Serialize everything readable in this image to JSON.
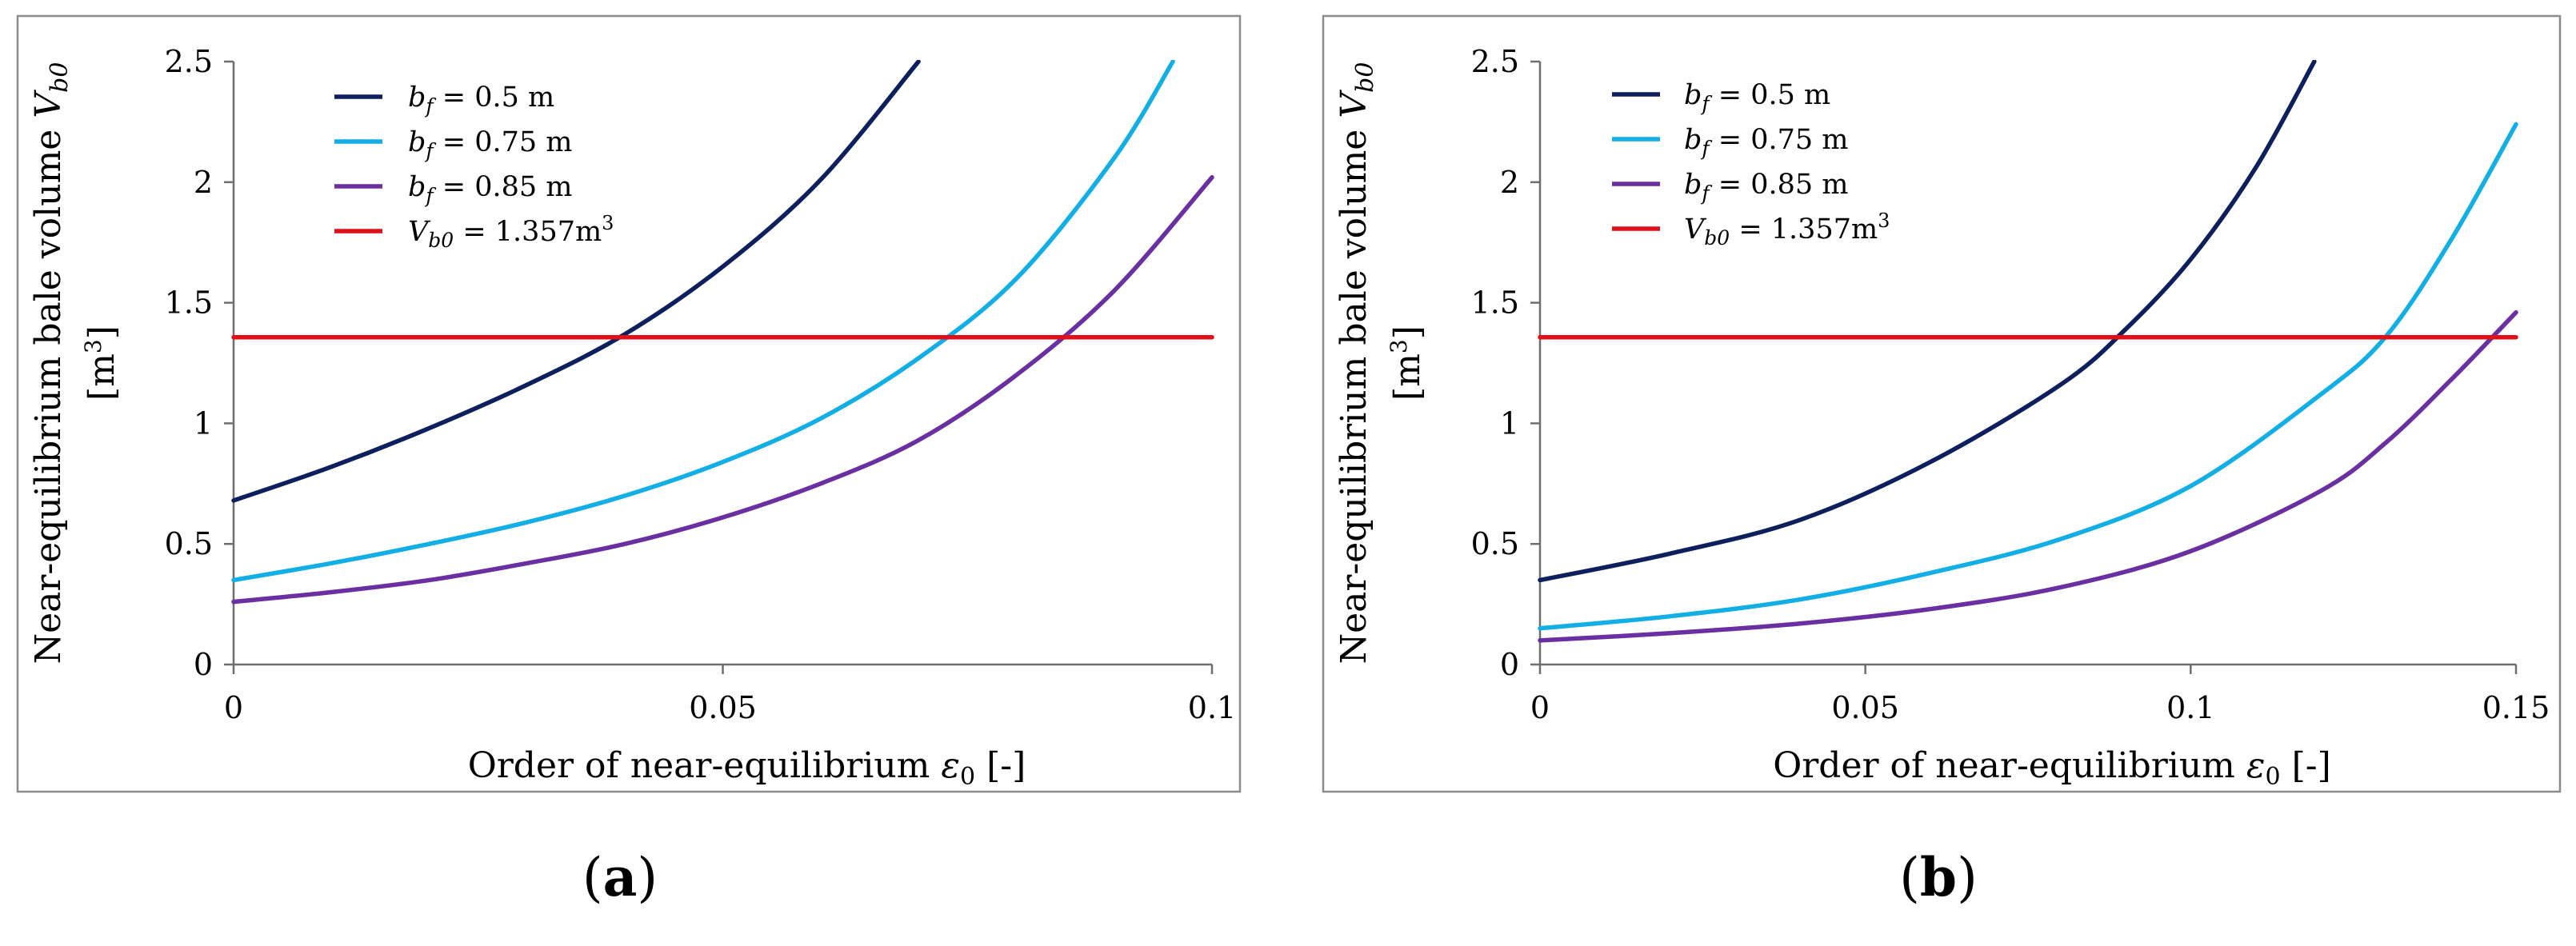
{
  "colors": {
    "bf_05": "#0d1f5c",
    "bf_075": "#12aee6",
    "bf_085": "#6a2fa0",
    "vb0": "#e0101a",
    "frame": "#8c8c8c",
    "axis": "#6e6e6e"
  },
  "chart_data": [
    {
      "type": "line",
      "panel_label": "(a)",
      "panel_label_parts": [
        "(",
        "a",
        ")"
      ],
      "xlabel": "Order of near-equilibrium ε0  [-]",
      "xlabel_parts": {
        "main": "Order of near-equilibrium ",
        "symbol": "ε",
        "sub": "0",
        "unit": "[-]"
      },
      "ylabel": "Near-equilibrium bale volume Vb0 [m3]",
      "ylabel_parts": {
        "line1": "Near-equilibrium bale volume ",
        "symbol": "V",
        "sub": "b0",
        "unit_open": "[m",
        "unit_sup": "3",
        "unit_close": "]"
      },
      "xlim": [
        0,
        0.1
      ],
      "ylim": [
        0,
        2.5
      ],
      "x_ticks": [
        0,
        0.05,
        0.1
      ],
      "x_tick_labels": [
        "0",
        "0.05",
        "0.1"
      ],
      "y_ticks": [
        0,
        0.5,
        1,
        1.5,
        2,
        2.5
      ],
      "y_tick_labels": [
        "0",
        "0.5",
        "1",
        "1.5",
        "2",
        "2.5"
      ],
      "legend_position": "top-left",
      "series": [
        {
          "key": "bf_05",
          "name": "bf = 0.5 m",
          "legend_lhs": "b",
          "legend_sub": "f",
          "legend_rhs": " = 0.5 m",
          "x": [
            0,
            0.01,
            0.02,
            0.03,
            0.04,
            0.05,
            0.06,
            0.07
          ],
          "values": [
            0.68,
            0.82,
            0.98,
            1.16,
            1.37,
            1.65,
            2.01,
            2.5
          ]
        },
        {
          "key": "bf_075",
          "name": "bf = 0.75 m",
          "legend_lhs": "b",
          "legend_sub": "f",
          "legend_rhs": " = 0.75 m",
          "x": [
            0,
            0.01,
            0.02,
            0.03,
            0.04,
            0.05,
            0.06,
            0.07,
            0.08,
            0.09,
            0.096
          ],
          "values": [
            0.35,
            0.42,
            0.5,
            0.59,
            0.7,
            0.84,
            1.02,
            1.27,
            1.6,
            2.1,
            2.5
          ]
        },
        {
          "key": "bf_085",
          "name": "bf = 0.85 m",
          "legend_lhs": "b",
          "legend_sub": "f",
          "legend_rhs": " = 0.85 m",
          "x": [
            0,
            0.01,
            0.02,
            0.03,
            0.04,
            0.05,
            0.06,
            0.07,
            0.08,
            0.09,
            0.1
          ],
          "values": [
            0.26,
            0.3,
            0.35,
            0.42,
            0.5,
            0.61,
            0.75,
            0.93,
            1.2,
            1.55,
            2.02
          ]
        },
        {
          "key": "vb0",
          "name": "Vb0 = 1.357m3",
          "legend_lhs": "V",
          "legend_sub": "b0",
          "legend_rhs": " = 1.357m",
          "legend_sup": "3",
          "x": [
            0,
            0.1
          ],
          "values": [
            1.357,
            1.357
          ]
        }
      ]
    },
    {
      "type": "line",
      "panel_label": "(b)",
      "panel_label_parts": [
        "(",
        "b",
        ")"
      ],
      "xlabel": "Order of near-equilibrium ε0  [-]",
      "xlabel_parts": {
        "main": "Order of near-equilibrium ",
        "symbol": "ε",
        "sub": "0",
        "unit": "[-]"
      },
      "ylabel": "Near-equilibrium bale volume Vb0 [m3]",
      "ylabel_parts": {
        "line1": "Near-equilibrium bale volume ",
        "symbol": "V",
        "sub": "b0",
        "unit_open": "[m",
        "unit_sup": "3",
        "unit_close": "]"
      },
      "xlim": [
        0,
        0.15
      ],
      "ylim": [
        0,
        2.5
      ],
      "x_ticks": [
        0,
        0.05,
        0.1,
        0.15
      ],
      "x_tick_labels": [
        "0",
        "0.05",
        "0.1",
        "0.15"
      ],
      "y_ticks": [
        0,
        0.5,
        1,
        1.5,
        2,
        2.5
      ],
      "y_tick_labels": [
        "0",
        "0.5",
        "1",
        "1.5",
        "2",
        "2.5"
      ],
      "legend_position": "top-left",
      "series": [
        {
          "key": "bf_05",
          "name": "bf = 0.5 m",
          "legend_lhs": "b",
          "legend_sub": "f",
          "legend_rhs": " = 0.5 m",
          "x": [
            0,
            0.02,
            0.04,
            0.06,
            0.08,
            0.09,
            0.1,
            0.11,
            0.119
          ],
          "values": [
            0.35,
            0.46,
            0.6,
            0.84,
            1.16,
            1.39,
            1.68,
            2.06,
            2.5
          ]
        },
        {
          "key": "bf_075",
          "name": "bf = 0.75 m",
          "legend_lhs": "b",
          "legend_sub": "f",
          "legend_rhs": " = 0.75 m",
          "x": [
            0,
            0.02,
            0.04,
            0.06,
            0.08,
            0.1,
            0.12,
            0.13,
            0.14,
            0.15
          ],
          "values": [
            0.15,
            0.2,
            0.27,
            0.38,
            0.52,
            0.74,
            1.12,
            1.36,
            1.76,
            2.24
          ]
        },
        {
          "key": "bf_085",
          "name": "bf = 0.85 m",
          "legend_lhs": "b",
          "legend_sub": "f",
          "legend_rhs": " = 0.85 m",
          "x": [
            0,
            0.02,
            0.04,
            0.06,
            0.08,
            0.1,
            0.12,
            0.13,
            0.14,
            0.15
          ],
          "values": [
            0.1,
            0.13,
            0.17,
            0.23,
            0.32,
            0.47,
            0.72,
            0.92,
            1.18,
            1.46
          ]
        },
        {
          "key": "vb0",
          "name": "Vb0 = 1.357m3",
          "legend_lhs": "V",
          "legend_sub": "b0",
          "legend_rhs": " = 1.357m",
          "legend_sup": "3",
          "x": [
            0,
            0.15
          ],
          "values": [
            1.357,
            1.357
          ]
        }
      ]
    }
  ]
}
